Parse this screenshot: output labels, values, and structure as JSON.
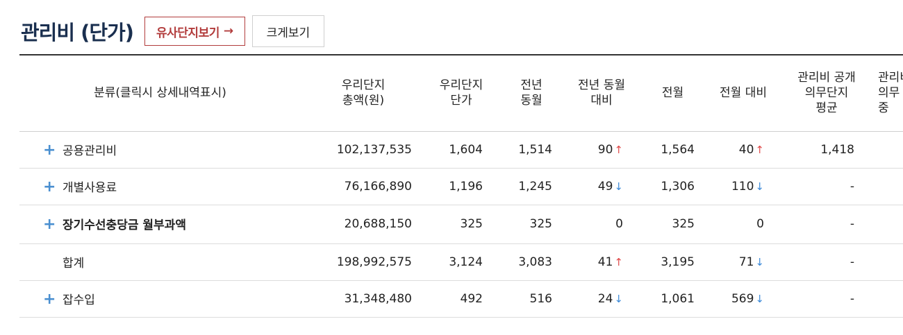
{
  "header": {
    "title": "관리비 (단가)",
    "similar_button": "유사단지보기",
    "similar_arrow": "→",
    "enlarge_button": "크게보기"
  },
  "table": {
    "headers": [
      [
        "분류(클릭시 상세내역표시)"
      ],
      [
        "우리단지",
        "총액(원)"
      ],
      [
        "우리단지",
        "단가"
      ],
      [
        "전년",
        "동월"
      ],
      [
        "전년 동월",
        "대비"
      ],
      [
        "전월"
      ],
      [
        "전월 대비"
      ],
      [
        "관리비 공개",
        "의무단지",
        "평균"
      ],
      [
        "관리비",
        "의무",
        "중"
      ]
    ],
    "rows": [
      {
        "category": "공용관리비",
        "expand": "+",
        "total": "102,137,535",
        "unit": "1,604",
        "prev_year": "1,514",
        "yoy": "90",
        "yoy_dir": "↑",
        "prev_month": "1,564",
        "mom": "40",
        "mom_dir": "↑",
        "avg": "1,418"
      },
      {
        "category": "개별사용료",
        "expand": "+",
        "total": "76,166,890",
        "unit": "1,196",
        "prev_year": "1,245",
        "yoy": "49",
        "yoy_dir": "↓",
        "prev_month": "1,306",
        "mom": "110",
        "mom_dir": "↓",
        "avg": "-"
      },
      {
        "category": "장기수선충당금 월부과액",
        "expand": "+",
        "total": "20,688,150",
        "unit": "325",
        "prev_year": "325",
        "yoy": "0",
        "yoy_dir": "",
        "prev_month": "325",
        "mom": "0",
        "mom_dir": "",
        "avg": "-"
      },
      {
        "category": "합계",
        "expand": "",
        "total": "198,992,575",
        "unit": "3,124",
        "prev_year": "3,083",
        "yoy": "41",
        "yoy_dir": "↑",
        "prev_month": "3,195",
        "mom": "71",
        "mom_dir": "↓",
        "avg": "-"
      },
      {
        "category": "잡수입",
        "expand": "+",
        "total": "31,348,480",
        "unit": "492",
        "prev_year": "516",
        "yoy": "24",
        "yoy_dir": "↓",
        "prev_month": "1,061",
        "mom": "569",
        "mom_dir": "↓",
        "avg": "-"
      }
    ]
  },
  "colors": {
    "title": "#1a2f4f",
    "accent_red": "#b23c3c",
    "up": "#e04a4a",
    "down": "#3d8ad8",
    "plus": "#4a8fd0"
  },
  "icons": {
    "expand": "plus-icon",
    "up": "arrow-up-icon",
    "down": "arrow-down-icon"
  }
}
